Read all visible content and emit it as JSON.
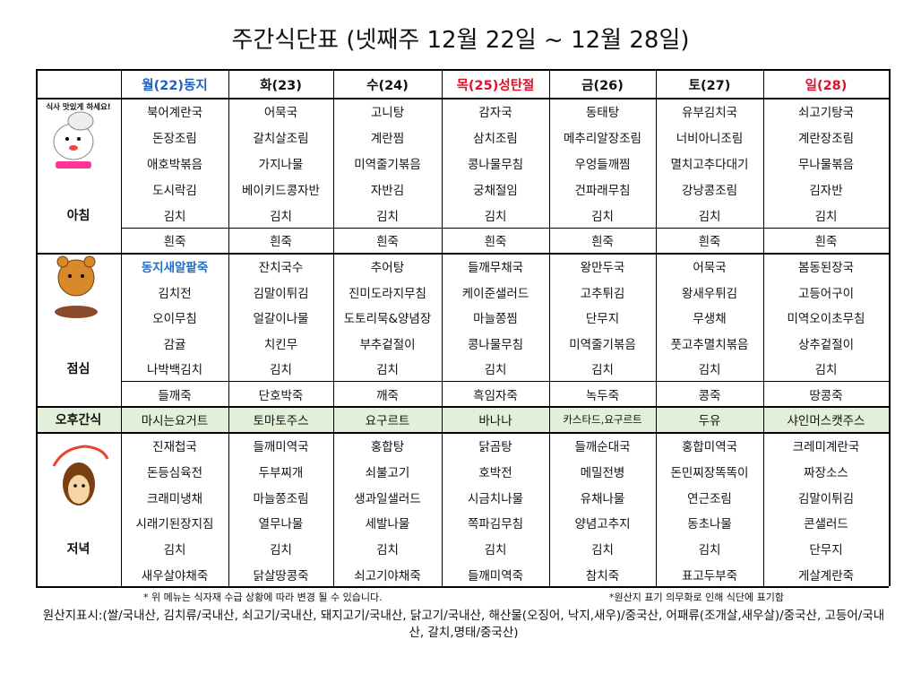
{
  "title": "주간식단표 (넷째주 12월 22일 ~ 12월 28일)",
  "header": {
    "days": [
      "월(22)동지",
      "화(23)",
      "수(24)",
      "목(25)성탄절",
      "금(26)",
      "토(27)",
      "일(28)"
    ]
  },
  "breakfast": {
    "label": "아침",
    "icon_text": "식사 맛있게 하세요!",
    "rows": [
      [
        "북어계란국",
        "어묵국",
        "고니탕",
        "감자국",
        "동태탕",
        "유부김치국",
        "쇠고기탕국"
      ],
      [
        "돈장조림",
        "갈치살조림",
        "계란찜",
        "삼치조림",
        "메추리알장조림",
        "너비아니조림",
        "계란장조림"
      ],
      [
        "애호박볶음",
        "가지나물",
        "미역줄기볶음",
        "콩나물무침",
        "우엉들깨찜",
        "멸치고추다대기",
        "무나물볶음"
      ],
      [
        "도시락김",
        "베이키드콩자반",
        "자반김",
        "궁채절임",
        "건파래무침",
        "강낭콩조림",
        "김자반"
      ],
      [
        "김치",
        "김치",
        "김치",
        "김치",
        "김치",
        "김치",
        "김치"
      ],
      [
        "흰죽",
        "흰죽",
        "흰죽",
        "흰죽",
        "흰죽",
        "흰죽",
        "흰죽"
      ]
    ]
  },
  "lunch": {
    "label": "점심",
    "rows": [
      [
        "동지새알팥죽",
        "잔치국수",
        "추어탕",
        "들깨무채국",
        "왕만두국",
        "어묵국",
        "봄동된장국"
      ],
      [
        "김치전",
        "김말이튀김",
        "진미도라지무침",
        "케이준샐러드",
        "고추튀김",
        "왕새우튀김",
        "고등어구이"
      ],
      [
        "오이무침",
        "얼갈이나물",
        "도토리묵&양념장",
        "마늘쫑찜",
        "단무지",
        "무생채",
        "미역오이초무침"
      ],
      [
        "감귤",
        "치킨무",
        "부추겉절이",
        "콩나물무침",
        "미역줄기볶음",
        "풋고추멸치볶음",
        "상추겉절이"
      ],
      [
        "나박백김치",
        "김치",
        "김치",
        "김치",
        "김치",
        "김치",
        "김치"
      ],
      [
        "들깨죽",
        "단호박죽",
        "깨죽",
        "흑임자죽",
        "녹두죽",
        "콩죽",
        "땅콩죽"
      ]
    ]
  },
  "snack": {
    "label": "오후간식",
    "rows": [
      [
        "마시는요거트",
        "토마토주스",
        "요구르트",
        "바나나",
        "카스타드,요구르트",
        "두유",
        "샤인머스캣주스"
      ]
    ]
  },
  "dinner": {
    "label": "저녁",
    "rows": [
      [
        "진재첩국",
        "들깨미역국",
        "홍합탕",
        "닭곰탕",
        "들깨순대국",
        "홍합미역국",
        "크레미계란국"
      ],
      [
        "돈등심육전",
        "두부찌개",
        "쇠불고기",
        "호박전",
        "메밀전병",
        "돈민찌장똑똑이",
        "짜장소스"
      ],
      [
        "크래미냉채",
        "마늘쫑조림",
        "생과일샐러드",
        "시금치나물",
        "유채나물",
        "연근조림",
        "김말이튀김"
      ],
      [
        "시래기된장지짐",
        "열무나물",
        "세발나물",
        "쪽파김무침",
        "양념고추지",
        "동초나물",
        "콘샐러드"
      ],
      [
        "김치",
        "김치",
        "김치",
        "김치",
        "김치",
        "김치",
        "단무지"
      ],
      [
        "새우살야채죽",
        "닭살땅콩죽",
        "쇠고기야채죽",
        "들깨미역죽",
        "참치죽",
        "표고두부죽",
        "게살계란죽"
      ]
    ]
  },
  "footer": {
    "note_left": "* 위 메뉴는 식자재 수급 상황에 따라 변경 될 수 있습니다.",
    "note_right": "*원산지 표기 의무화로 인해 식단에 표기함",
    "origin": "원산지표시:(쌀/국내산, 김치류/국내산, 쇠고기/국내산, 돼지고기/국내산, 닭고기/국내산, 해산물(오징어, 낙지,새우)/중국산, 어패류(조개살,새우살)/중국산, 고등어/국내산, 갈치,명태/중국산)"
  }
}
